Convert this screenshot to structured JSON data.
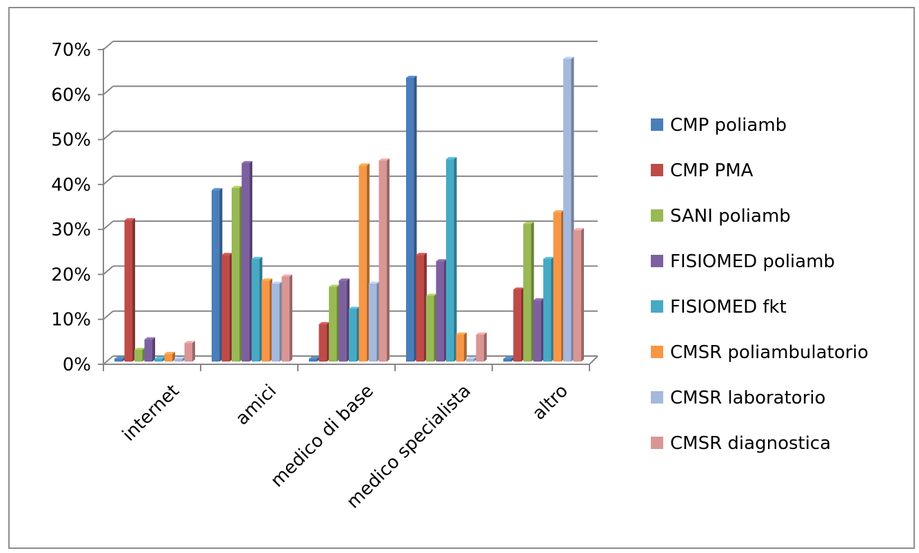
{
  "chart_data": {
    "type": "bar",
    "title": "",
    "xlabel": "",
    "ylabel": "",
    "ylim": [
      0,
      0.7
    ],
    "yticks": [
      "0%",
      "10%",
      "20%",
      "30%",
      "40%",
      "50%",
      "60%",
      "70%"
    ],
    "grid": true,
    "legend_position": "right",
    "categories": [
      "internet",
      "amici",
      "medico di base",
      "medico specialista",
      "altro"
    ],
    "series": [
      {
        "name": "CMP poliamb",
        "color": "#4a7ebb",
        "values": [
          0.0,
          0.375,
          0.0,
          0.625,
          0.0
        ]
      },
      {
        "name": "CMP PMA",
        "color": "#be4b48",
        "values": [
          0.308,
          0.231,
          0.077,
          0.231,
          0.154
        ]
      },
      {
        "name": "SANI poliamb",
        "color": "#98b954",
        "values": [
          0.02,
          0.38,
          0.16,
          0.14,
          0.3
        ]
      },
      {
        "name": "FISIOMED poliamb",
        "color": "#7d60a0",
        "values": [
          0.043,
          0.435,
          0.174,
          0.217,
          0.13
        ]
      },
      {
        "name": "FISIOMED fkt",
        "color": "#46aac5",
        "values": [
          0.0,
          0.222,
          0.111,
          0.444,
          0.222
        ]
      },
      {
        "name": "CMSR poliambulatorio",
        "color": "#f79646",
        "values": [
          0.011,
          0.174,
          0.43,
          0.054,
          0.326
        ]
      },
      {
        "name": "CMSR laboratorio",
        "color": "#a5b9de",
        "values": [
          0.0,
          0.167,
          0.167,
          0.0,
          0.667
        ]
      },
      {
        "name": "CMSR diagnostica",
        "color": "#d99694",
        "values": [
          0.035,
          0.183,
          0.441,
          0.054,
          0.286
        ]
      }
    ]
  }
}
